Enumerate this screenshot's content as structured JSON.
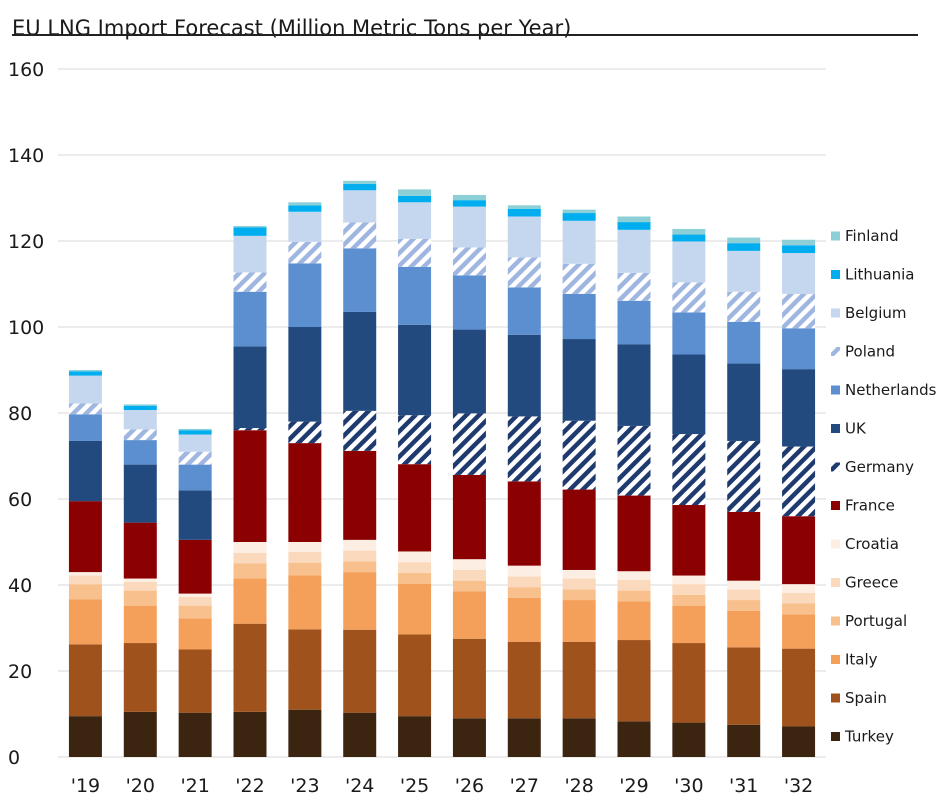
{
  "title": "EU LNG Import Forecast (Million Metric Tons per Year)",
  "chart_data": {
    "type": "bar",
    "stacked": true,
    "title": "EU LNG Import Forecast (Million Metric Tons per Year)",
    "xlabel": "",
    "ylabel": "",
    "ylim": [
      0,
      160
    ],
    "yticks": [
      0,
      20,
      40,
      60,
      80,
      100,
      120,
      140,
      160
    ],
    "grid": true,
    "legend_position": "right",
    "categories": [
      "'19",
      "'20",
      "'21",
      "'22",
      "'23",
      "'24",
      "'25",
      "'26",
      "'27",
      "'28",
      "'29",
      "'30",
      "'31",
      "'32"
    ],
    "series": [
      {
        "name": "Turkey",
        "color": "#3b2410",
        "pattern": "solid",
        "values": [
          9.5,
          10.5,
          10.3,
          10.5,
          11,
          10.3,
          9.5,
          9,
          9,
          9,
          8.3,
          8,
          7.5,
          7.1
        ]
      },
      {
        "name": "Spain",
        "color": "#a0521c",
        "pattern": "solid",
        "values": [
          16.7,
          16,
          14.7,
          20.5,
          18.7,
          19.3,
          19,
          18.5,
          17.8,
          17.8,
          18.9,
          18.5,
          18,
          18.1
        ]
      },
      {
        "name": "Italy",
        "color": "#f5a05a",
        "pattern": "solid",
        "values": [
          10.5,
          8.7,
          7.2,
          10.5,
          12.5,
          13.4,
          11.8,
          11,
          10.2,
          9.7,
          9,
          8.7,
          8.5,
          8
        ]
      },
      {
        "name": "Portugal",
        "color": "#f8c08c",
        "pattern": "solid",
        "values": [
          3.5,
          3.5,
          3,
          3.5,
          3,
          2.5,
          2.5,
          2.5,
          2.5,
          2.5,
          2.5,
          2.5,
          2.5,
          2.5
        ]
      },
      {
        "name": "Greece",
        "color": "#fbd9bc",
        "pattern": "solid",
        "values": [
          2,
          2,
          2,
          2.5,
          2.5,
          2.5,
          2.5,
          2.5,
          2.5,
          2.5,
          2.5,
          2.5,
          2.5,
          2.5
        ]
      },
      {
        "name": "Croatia",
        "color": "#fdeee3",
        "pattern": "solid",
        "values": [
          0.8,
          0.8,
          0.8,
          2.5,
          2.3,
          2.5,
          2.5,
          2.5,
          2.5,
          2,
          2,
          2,
          2,
          2
        ]
      },
      {
        "name": "France",
        "color": "#8b0000",
        "pattern": "solid",
        "values": [
          16.5,
          13,
          12.5,
          26,
          23,
          20.7,
          20.3,
          19.6,
          19.6,
          18.7,
          17.6,
          16.4,
          16,
          15.8
        ]
      },
      {
        "name": "Germany",
        "color": "#1e3a6e",
        "pattern": "hatch",
        "values": [
          0,
          0,
          0,
          0.5,
          5,
          9.3,
          11.4,
          14.3,
          15.1,
          16,
          16.2,
          16.5,
          16.5,
          16.2
        ]
      },
      {
        "name": "UK",
        "color": "#234a7e",
        "pattern": "solid",
        "values": [
          14,
          13.5,
          11.5,
          19,
          22,
          23,
          21,
          19.5,
          19,
          19,
          19,
          18.5,
          18,
          18
        ]
      },
      {
        "name": "Netherlands",
        "color": "#5b8fd0",
        "pattern": "solid",
        "values": [
          6.2,
          5.7,
          6,
          12.7,
          14.8,
          14.8,
          13.5,
          12.6,
          11,
          10.5,
          10.1,
          9.8,
          9.7,
          9.5
        ]
      },
      {
        "name": "Poland",
        "color": "#9fb6e0",
        "pattern": "hatch",
        "values": [
          2.5,
          2.5,
          3,
          4.5,
          5,
          6,
          6.5,
          6.5,
          7,
          7,
          6.5,
          7,
          7,
          8
        ]
      },
      {
        "name": "Belgium",
        "color": "#c5d7ef",
        "pattern": "solid",
        "values": [
          6.5,
          4.5,
          4,
          8.5,
          7,
          7.5,
          8.5,
          9.5,
          9.5,
          10,
          10,
          9.5,
          9.5,
          9.5
        ]
      },
      {
        "name": "Lithuania",
        "color": "#00aeef",
        "pattern": "solid",
        "values": [
          1,
          1,
          1,
          2,
          1.5,
          1.5,
          1.5,
          1.5,
          1.8,
          1.8,
          1.8,
          1.6,
          1.8,
          1.8
        ]
      },
      {
        "name": "Finland",
        "color": "#8dcfd6",
        "pattern": "solid",
        "values": [
          0.3,
          0.3,
          0.3,
          0.3,
          0.7,
          0.7,
          1.5,
          1.2,
          0.8,
          0.8,
          1.3,
          1.3,
          1.3,
          1.3
        ]
      }
    ]
  }
}
